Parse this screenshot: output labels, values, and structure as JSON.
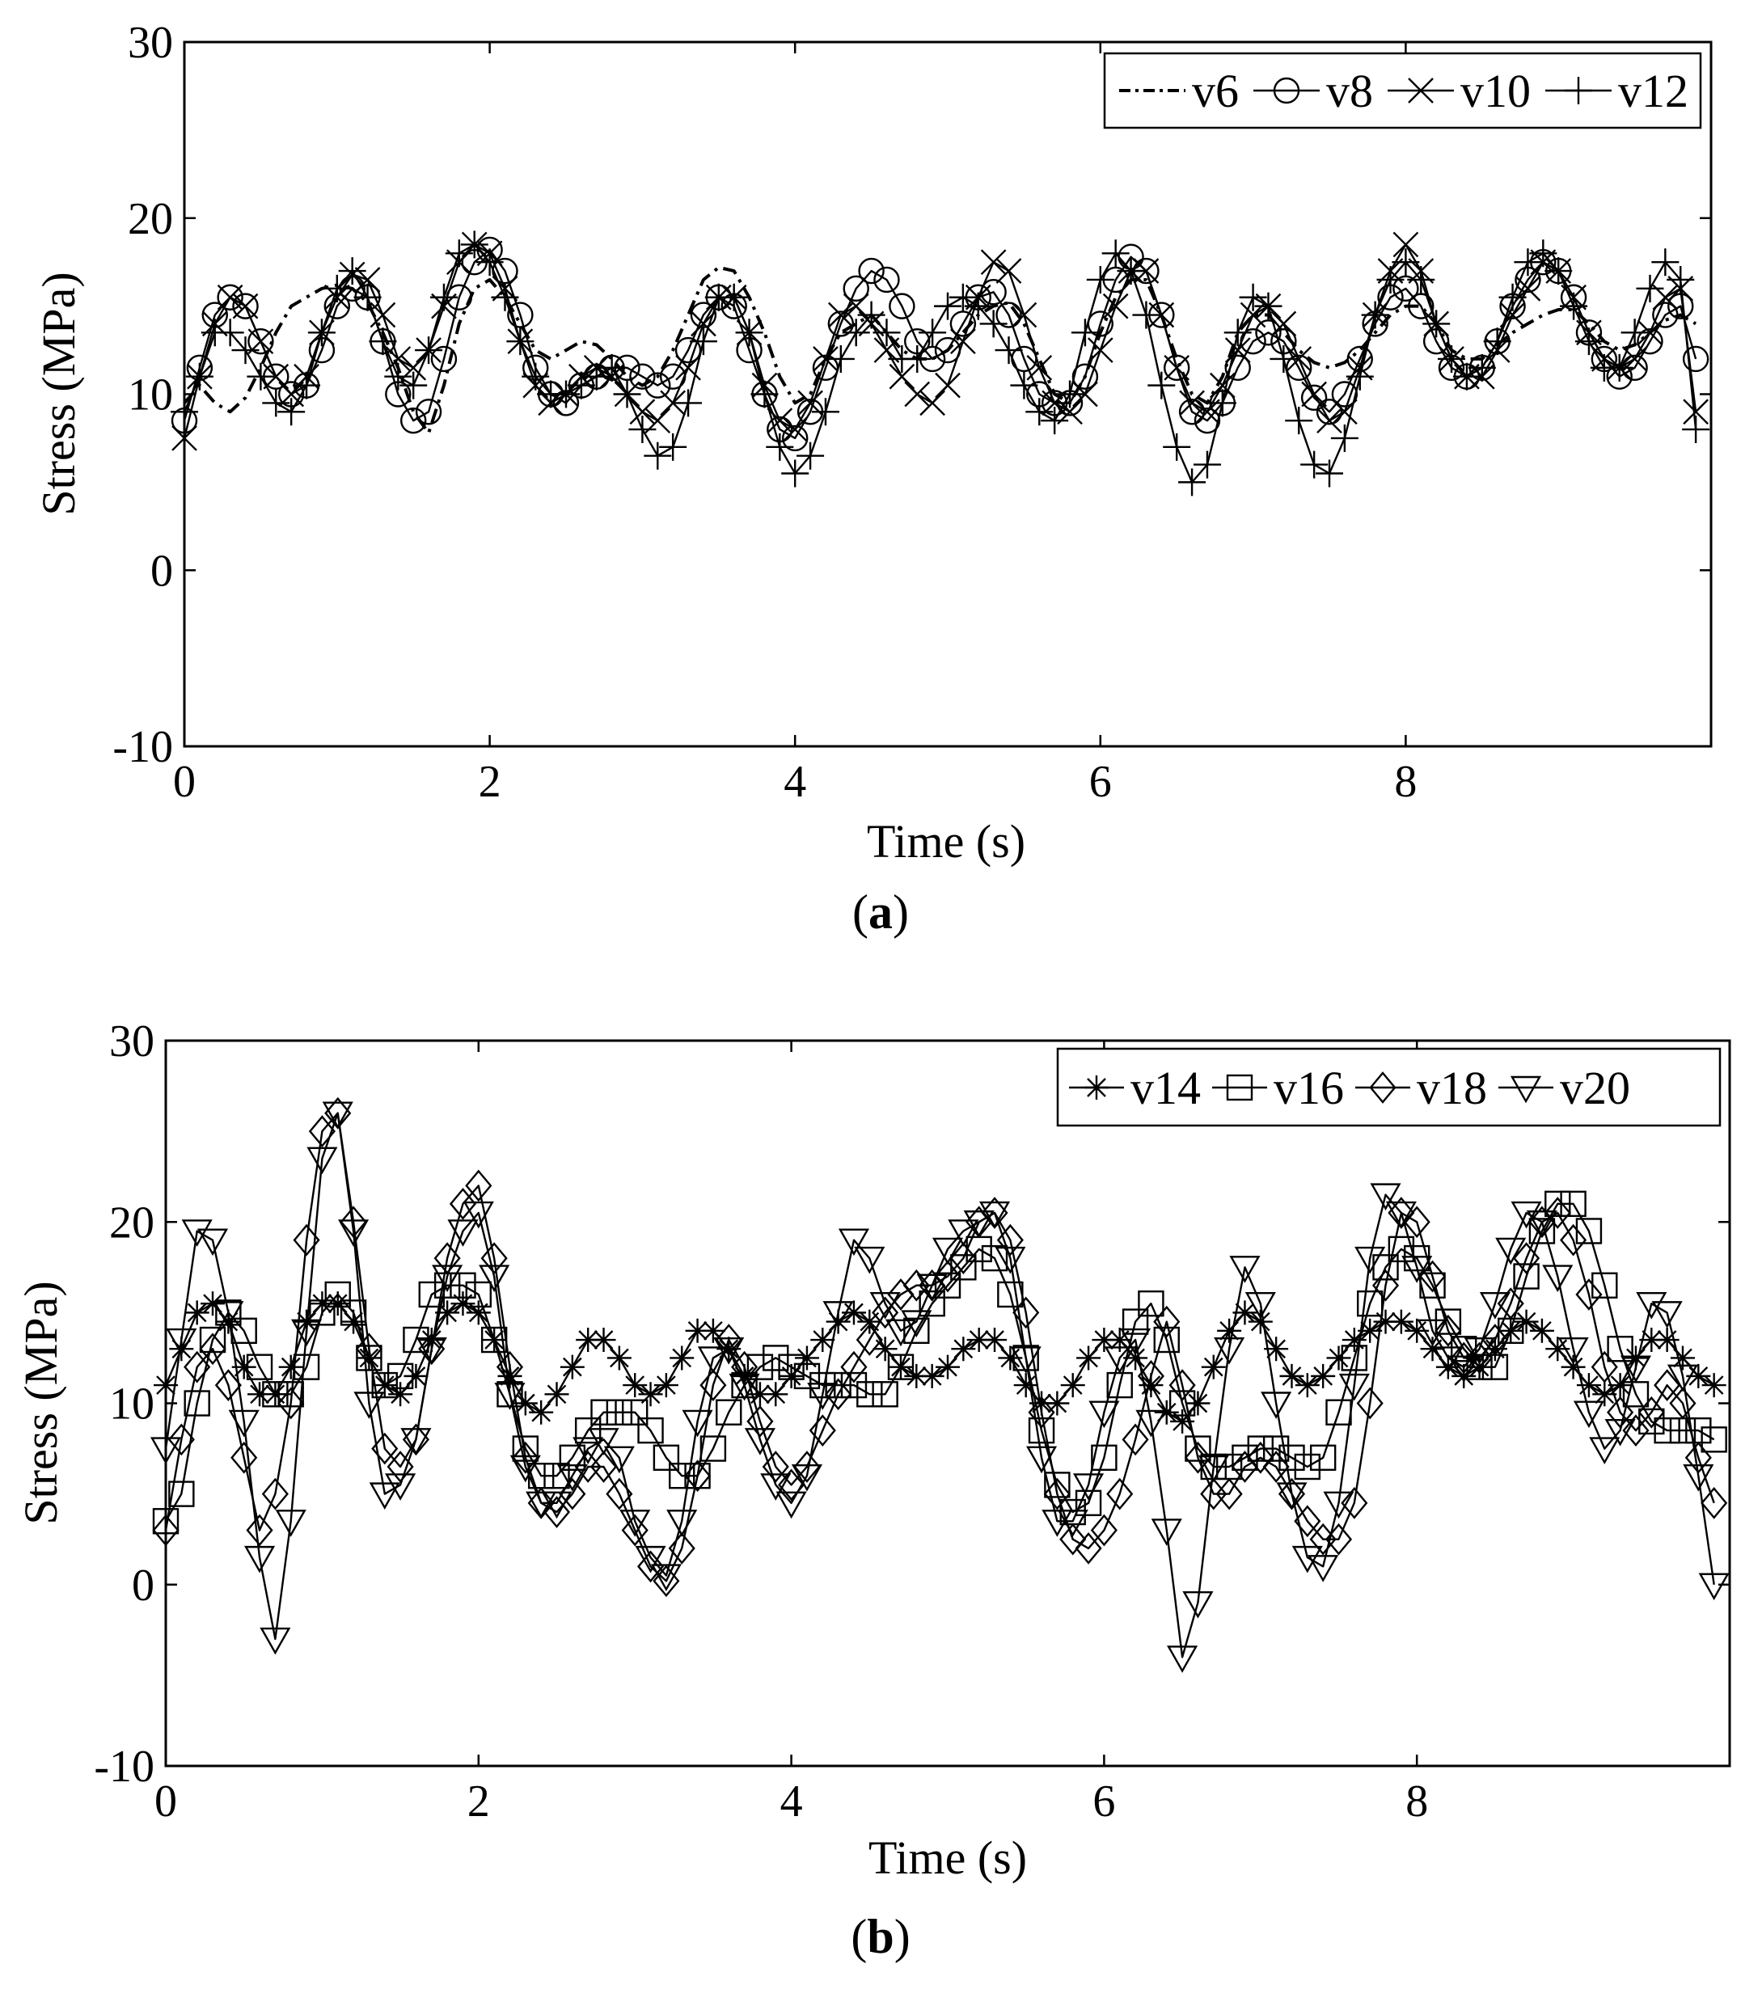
{
  "figure": {
    "panels": [
      {
        "label_open": "(",
        "label_letter": "a",
        "label_close": ")"
      },
      {
        "label_open": "(",
        "label_letter": "b",
        "label_close": ")"
      }
    ]
  },
  "chart_data": [
    {
      "type": "line",
      "title": "",
      "xlabel": "Time (s)",
      "ylabel": "Stress (MPa)",
      "xlim": [
        0,
        10
      ],
      "ylim": [
        -10,
        30
      ],
      "xticks": [
        0,
        2,
        4,
        6,
        8
      ],
      "yticks": [
        -10,
        0,
        10,
        20,
        30
      ],
      "grid": false,
      "legend_position": "top-right",
      "x": [
        0,
        0.1,
        0.2,
        0.3,
        0.4,
        0.5,
        0.6,
        0.7,
        0.8,
        0.9,
        1.0,
        1.1,
        1.2,
        1.3,
        1.4,
        1.5,
        1.6,
        1.7,
        1.8,
        1.9,
        2.0,
        2.1,
        2.2,
        2.3,
        2.4,
        2.5,
        2.6,
        2.7,
        2.8,
        2.9,
        3.0,
        3.1,
        3.2,
        3.3,
        3.4,
        3.5,
        3.6,
        3.7,
        3.8,
        3.9,
        4.0,
        4.1,
        4.2,
        4.3,
        4.4,
        4.5,
        4.6,
        4.7,
        4.8,
        4.9,
        5.0,
        5.1,
        5.2,
        5.3,
        5.4,
        5.5,
        5.6,
        5.7,
        5.8,
        5.9,
        6.0,
        6.1,
        6.2,
        6.3,
        6.4,
        6.5,
        6.6,
        6.7,
        6.8,
        6.9,
        7.0,
        7.1,
        7.2,
        7.3,
        7.4,
        7.5,
        7.6,
        7.7,
        7.8,
        7.9,
        8.0,
        8.1,
        8.2,
        8.3,
        8.4,
        8.5,
        8.6,
        8.7,
        8.8,
        8.9,
        9.0,
        9.1,
        9.2,
        9.3,
        9.4,
        9.5,
        9.6,
        9.7,
        9.8,
        9.9
      ],
      "series": [
        {
          "name": "v6",
          "marker": "none",
          "dash": "dashdot",
          "values": [
            9.5,
            10.5,
            9.5,
            9.0,
            9.8,
            11.5,
            13.5,
            15.0,
            15.5,
            16.0,
            16.2,
            16.0,
            15.2,
            13.5,
            11.5,
            9.0,
            7.8,
            10.5,
            14.0,
            16.0,
            16.5,
            15.5,
            14.0,
            12.5,
            12.0,
            12.5,
            13.0,
            12.8,
            12.0,
            11.0,
            10.5,
            11.0,
            12.5,
            14.5,
            16.5,
            17.2,
            17.0,
            15.5,
            13.5,
            11.0,
            9.5,
            10.0,
            12.0,
            13.5,
            14.0,
            14.5,
            13.5,
            12.5,
            12.0,
            12.0,
            12.5,
            13.5,
            14.5,
            15.0,
            15.2,
            14.0,
            12.0,
            10.0,
            9.5,
            11.0,
            13.5,
            15.5,
            16.5,
            16.5,
            14.5,
            12.0,
            10.0,
            9.5,
            11.0,
            13.5,
            14.5,
            14.5,
            13.5,
            12.5,
            11.8,
            11.5,
            11.8,
            12.5,
            13.5,
            14.5,
            15.0,
            15.0,
            14.0,
            12.5,
            12.0,
            12.0,
            12.8,
            13.5,
            14.0,
            14.5,
            14.8,
            14.8,
            14.0,
            13.0,
            12.5,
            12.8,
            13.5,
            14.2,
            14.5,
            14.0
          ]
        },
        {
          "name": "v8",
          "marker": "circle",
          "dash": "solid",
          "values": [
            8.5,
            11.5,
            14.5,
            15.5,
            15.0,
            13.0,
            11.0,
            10.0,
            10.5,
            12.5,
            15.0,
            16.0,
            15.5,
            13.0,
            10.0,
            8.5,
            9.0,
            12.0,
            15.5,
            17.5,
            18.2,
            17.0,
            14.5,
            11.5,
            10.0,
            9.5,
            10.5,
            11.0,
            11.5,
            11.5,
            11.0,
            10.5,
            11.0,
            12.5,
            14.5,
            15.5,
            15.0,
            12.5,
            10.0,
            8.0,
            7.5,
            9.0,
            11.5,
            14.0,
            16.0,
            17.0,
            16.5,
            15.0,
            13.0,
            12.0,
            12.5,
            14.0,
            15.5,
            15.8,
            14.5,
            12.0,
            10.0,
            9.5,
            9.5,
            11.0,
            14.0,
            16.5,
            17.8,
            17.0,
            14.5,
            11.5,
            9.0,
            8.5,
            9.5,
            11.5,
            13.0,
            13.5,
            13.0,
            11.5,
            9.8,
            9.0,
            10.0,
            12.0,
            14.0,
            15.5,
            16.0,
            15.0,
            13.0,
            11.5,
            11.0,
            11.5,
            13.0,
            15.0,
            16.5,
            17.5,
            17.0,
            15.5,
            13.5,
            12.0,
            11.0,
            11.5,
            13.0,
            14.5,
            15.0,
            12.0
          ]
        },
        {
          "name": "v10",
          "marker": "x",
          "dash": "solid",
          "values": [
            7.5,
            11.0,
            14.0,
            15.5,
            15.0,
            13.0,
            11.0,
            10.0,
            11.0,
            13.5,
            15.5,
            16.8,
            16.5,
            14.5,
            12.0,
            11.5,
            12.5,
            15.0,
            17.5,
            18.5,
            18.0,
            16.0,
            13.0,
            10.5,
            9.5,
            10.0,
            11.0,
            11.5,
            11.0,
            10.0,
            9.0,
            8.5,
            9.5,
            11.5,
            14.0,
            15.5,
            15.5,
            13.5,
            10.5,
            8.5,
            8.0,
            9.5,
            12.0,
            14.5,
            15.0,
            14.0,
            12.5,
            11.0,
            10.0,
            9.5,
            10.5,
            13.0,
            15.5,
            17.5,
            17.0,
            14.5,
            11.5,
            9.5,
            9.0,
            10.0,
            12.5,
            15.0,
            17.0,
            17.0,
            14.5,
            11.5,
            9.5,
            9.0,
            10.5,
            12.5,
            14.5,
            15.0,
            14.0,
            12.0,
            10.0,
            8.5,
            9.0,
            11.5,
            14.5,
            17.0,
            18.5,
            17.0,
            14.0,
            12.0,
            11.0,
            11.0,
            12.5,
            14.5,
            16.0,
            17.5,
            17.0,
            15.5,
            13.5,
            12.0,
            11.5,
            12.0,
            13.5,
            15.5,
            16.0,
            9.0
          ]
        },
        {
          "name": "v12",
          "marker": "plus",
          "dash": "solid",
          "values": [
            9.0,
            11.0,
            13.5,
            13.5,
            12.5,
            11.0,
            9.5,
            9.0,
            10.5,
            13.5,
            16.0,
            17.0,
            15.5,
            13.0,
            11.0,
            10.5,
            12.5,
            15.5,
            18.0,
            18.5,
            17.5,
            15.5,
            13.0,
            11.0,
            10.0,
            10.0,
            10.5,
            11.0,
            11.5,
            10.0,
            8.0,
            6.5,
            7.0,
            9.5,
            13.0,
            15.5,
            15.5,
            13.5,
            10.0,
            7.0,
            5.5,
            6.5,
            9.0,
            12.0,
            13.5,
            14.5,
            13.5,
            12.0,
            12.0,
            13.5,
            15.0,
            15.5,
            15.0,
            14.0,
            12.5,
            10.5,
            9.0,
            8.5,
            10.0,
            13.5,
            16.5,
            18.0,
            17.0,
            14.5,
            10.5,
            7.0,
            5.0,
            6.0,
            9.5,
            13.5,
            15.5,
            15.0,
            12.0,
            8.5,
            6.0,
            5.5,
            7.5,
            11.0,
            14.5,
            16.5,
            17.5,
            16.5,
            14.0,
            12.0,
            11.0,
            11.5,
            13.0,
            15.5,
            17.5,
            18.0,
            17.0,
            15.0,
            13.0,
            11.5,
            11.5,
            13.5,
            16.0,
            17.5,
            16.5,
            8.0
          ]
        }
      ]
    },
    {
      "type": "line",
      "title": "",
      "xlabel": "Time (s)",
      "ylabel": "Stress (MPa)",
      "xlim": [
        0,
        10
      ],
      "ylim": [
        -10,
        30
      ],
      "xticks": [
        0,
        2,
        4,
        6,
        8
      ],
      "yticks": [
        -10,
        0,
        10,
        20,
        30
      ],
      "grid": false,
      "legend_position": "top-right",
      "x": [
        0,
        0.1,
        0.2,
        0.3,
        0.4,
        0.5,
        0.6,
        0.7,
        0.8,
        0.9,
        1.0,
        1.1,
        1.2,
        1.3,
        1.4,
        1.5,
        1.6,
        1.7,
        1.8,
        1.9,
        2.0,
        2.1,
        2.2,
        2.3,
        2.4,
        2.5,
        2.6,
        2.7,
        2.8,
        2.9,
        3.0,
        3.1,
        3.2,
        3.3,
        3.4,
        3.5,
        3.6,
        3.7,
        3.8,
        3.9,
        4.0,
        4.1,
        4.2,
        4.3,
        4.4,
        4.5,
        4.6,
        4.7,
        4.8,
        4.9,
        5.0,
        5.1,
        5.2,
        5.3,
        5.4,
        5.5,
        5.6,
        5.7,
        5.8,
        5.9,
        6.0,
        6.1,
        6.2,
        6.3,
        6.4,
        6.5,
        6.6,
        6.7,
        6.8,
        6.9,
        7.0,
        7.1,
        7.2,
        7.3,
        7.4,
        7.5,
        7.6,
        7.7,
        7.8,
        7.9,
        8.0,
        8.1,
        8.2,
        8.3,
        8.4,
        8.5,
        8.6,
        8.7,
        8.8,
        8.9,
        9.0,
        9.1,
        9.2,
        9.3,
        9.4,
        9.5,
        9.6,
        9.7,
        9.8,
        9.9
      ],
      "series": [
        {
          "name": "v14",
          "marker": "star",
          "dash": "solid",
          "values": [
            11.0,
            13.0,
            15.0,
            15.5,
            14.5,
            12.0,
            10.5,
            10.5,
            12.0,
            14.5,
            15.5,
            15.5,
            14.5,
            12.5,
            11.0,
            10.5,
            11.5,
            13.5,
            15.0,
            15.5,
            15.0,
            13.5,
            11.5,
            10.0,
            9.5,
            10.5,
            12.0,
            13.5,
            13.5,
            12.5,
            11.0,
            10.5,
            11.0,
            12.5,
            14.0,
            14.0,
            13.0,
            11.5,
            10.5,
            10.5,
            11.5,
            12.5,
            13.5,
            14.5,
            15.0,
            14.5,
            13.0,
            12.0,
            11.5,
            11.5,
            12.0,
            13.0,
            13.5,
            13.5,
            12.5,
            11.0,
            10.0,
            10.0,
            11.0,
            12.5,
            13.5,
            13.5,
            12.5,
            11.0,
            9.5,
            9.0,
            10.0,
            12.0,
            14.0,
            15.0,
            14.5,
            13.0,
            11.5,
            11.0,
            11.5,
            12.5,
            13.5,
            14.0,
            14.5,
            14.5,
            14.0,
            13.0,
            12.0,
            11.5,
            12.0,
            13.0,
            14.0,
            14.5,
            14.0,
            13.0,
            12.0,
            11.0,
            10.5,
            11.0,
            12.5,
            13.5,
            13.5,
            12.5,
            11.5,
            11.0
          ]
        },
        {
          "name": "v16",
          "marker": "square",
          "dash": "solid",
          "values": [
            3.5,
            5.0,
            10.0,
            13.5,
            15.0,
            14.0,
            12.0,
            10.5,
            10.5,
            12.0,
            15.0,
            16.0,
            15.0,
            12.5,
            11.0,
            11.5,
            13.5,
            16.0,
            16.5,
            16.5,
            16.0,
            13.5,
            10.5,
            7.5,
            6.0,
            6.0,
            7.0,
            8.5,
            9.5,
            9.5,
            9.5,
            8.5,
            7.0,
            6.0,
            6.0,
            7.5,
            9.5,
            11.0,
            12.0,
            12.5,
            12.0,
            11.5,
            11.0,
            11.0,
            11.0,
            10.5,
            10.5,
            12.0,
            14.0,
            15.5,
            16.5,
            17.5,
            18.5,
            18.0,
            16.0,
            12.5,
            8.5,
            5.5,
            4.0,
            4.5,
            7.0,
            11.0,
            14.5,
            15.5,
            13.5,
            10.0,
            7.5,
            6.5,
            6.5,
            7.0,
            7.5,
            7.5,
            7.0,
            6.5,
            7.0,
            9.5,
            12.5,
            15.5,
            17.5,
            18.5,
            18.0,
            16.5,
            14.5,
            13.0,
            12.0,
            12.0,
            14.0,
            17.0,
            19.5,
            21.0,
            21.0,
            19.5,
            16.5,
            13.0,
            10.5,
            9.0,
            8.5,
            8.5,
            8.5,
            8.0
          ]
        },
        {
          "name": "v18",
          "marker": "diamond",
          "dash": "solid",
          "values": [
            3.0,
            8.0,
            12.0,
            13.0,
            11.0,
            7.0,
            3.0,
            5.0,
            10.0,
            19.0,
            25.0,
            26.0,
            20.0,
            13.0,
            7.5,
            6.5,
            8.0,
            13.0,
            18.0,
            21.0,
            22.0,
            18.0,
            12.0,
            7.0,
            4.5,
            4.0,
            5.0,
            6.5,
            6.5,
            5.0,
            3.0,
            1.0,
            0.2,
            2.0,
            6.0,
            11.0,
            13.5,
            12.0,
            9.0,
            6.5,
            5.5,
            6.5,
            8.5,
            10.5,
            12.0,
            13.5,
            15.0,
            16.0,
            16.5,
            16.5,
            17.0,
            18.0,
            20.0,
            20.5,
            19.0,
            15.0,
            9.5,
            5.0,
            2.5,
            2.0,
            3.0,
            5.0,
            8.0,
            11.5,
            14.5,
            11.0,
            7.0,
            5.0,
            5.0,
            6.5,
            7.0,
            6.5,
            5.0,
            3.5,
            2.5,
            2.5,
            4.5,
            10.0,
            16.5,
            20.5,
            20.0,
            17.0,
            14.0,
            12.5,
            12.5,
            13.5,
            15.5,
            18.0,
            20.0,
            20.5,
            19.0,
            16.0,
            12.0,
            9.5,
            8.5,
            9.5,
            11.0,
            10.0,
            7.0,
            4.5
          ]
        },
        {
          "name": "v20",
          "marker": "triangle-down",
          "dash": "solid",
          "values": [
            7.5,
            13.5,
            19.5,
            19.0,
            15.0,
            9.0,
            1.5,
            -3.0,
            3.5,
            14.0,
            23.5,
            26.0,
            19.5,
            10.0,
            5.0,
            5.5,
            8.0,
            13.0,
            17.0,
            19.5,
            20.5,
            17.0,
            10.5,
            6.5,
            4.5,
            4.5,
            6.0,
            7.5,
            8.0,
            7.0,
            3.5,
            1.5,
            0.5,
            3.5,
            9.0,
            12.5,
            13.0,
            11.0,
            8.0,
            5.5,
            4.5,
            6.0,
            10.5,
            15.0,
            19.0,
            18.0,
            15.5,
            14.0,
            14.5,
            16.5,
            18.5,
            19.5,
            20.0,
            20.5,
            18.0,
            12.5,
            7.0,
            3.5,
            3.5,
            5.5,
            9.5,
            12.5,
            13.5,
            9.0,
            3.0,
            -4.0,
            -1.0,
            6.5,
            13.0,
            17.5,
            15.5,
            10.0,
            5.0,
            1.5,
            1.0,
            4.5,
            11.0,
            18.0,
            21.5,
            20.5,
            17.5,
            14.0,
            12.5,
            12.0,
            13.0,
            15.5,
            18.5,
            20.5,
            20.0,
            17.0,
            13.0,
            9.5,
            7.5,
            8.5,
            12.0,
            15.5,
            15.0,
            11.5,
            6.0,
            0.0
          ]
        }
      ]
    }
  ]
}
